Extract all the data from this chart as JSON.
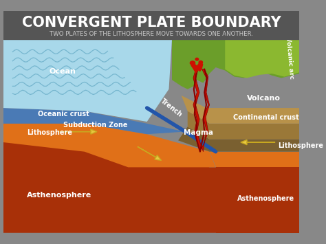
{
  "title": "CONVERGENT PLATE BOUNDARY",
  "subtitle": "TWO PLATES OF THE LITHOSPHERE MOVE TOWARDS ONE ANOTHER.",
  "title_color": "#FFFFFF",
  "subtitle_color": "#CCCCCC",
  "header_bg": "#555555",
  "colors": {
    "ocean_water": "#A8D8EA",
    "ocean_water_dark": "#6AAEC8",
    "oceanic_crust_top": "#B8C8D8",
    "oceanic_crust_blue": "#4A7AB5",
    "green_hills": "#6B9E2A",
    "green_hills2": "#8BB830",
    "brown_upper": "#B8924A",
    "brown_mid": "#9A7838",
    "brown_lower": "#7A6030",
    "litho_orange_light": "#F0821E",
    "litho_orange": "#E07018",
    "asthen_orange": "#D86010",
    "asthen_red": "#C04010",
    "asthen_dark": "#A83008",
    "magma_red": "#CC1100",
    "magma_dark": "#880000",
    "arrow_yellow": "#E8C840",
    "arrow_outline": "#C8A820",
    "subduct_blue": "#2255AA",
    "white": "#FFFFFF",
    "background": "#888888"
  },
  "labels": {
    "ocean": "Ocean",
    "trench": "Trench",
    "volcanic_arc": "Volcanic arc",
    "oceanic_crust": "Oceanic crust",
    "subduction_zone": "Subduction Zone",
    "lithosphere_left": "Lithosphere",
    "asthenosphere_left": "Asthenosphere",
    "volcano": "Volcano",
    "continental_crust": "Continental crust",
    "magma": "Magma",
    "lithosphere_right": "Lithosphere",
    "asthenosphere_right": "Asthenosphere"
  }
}
